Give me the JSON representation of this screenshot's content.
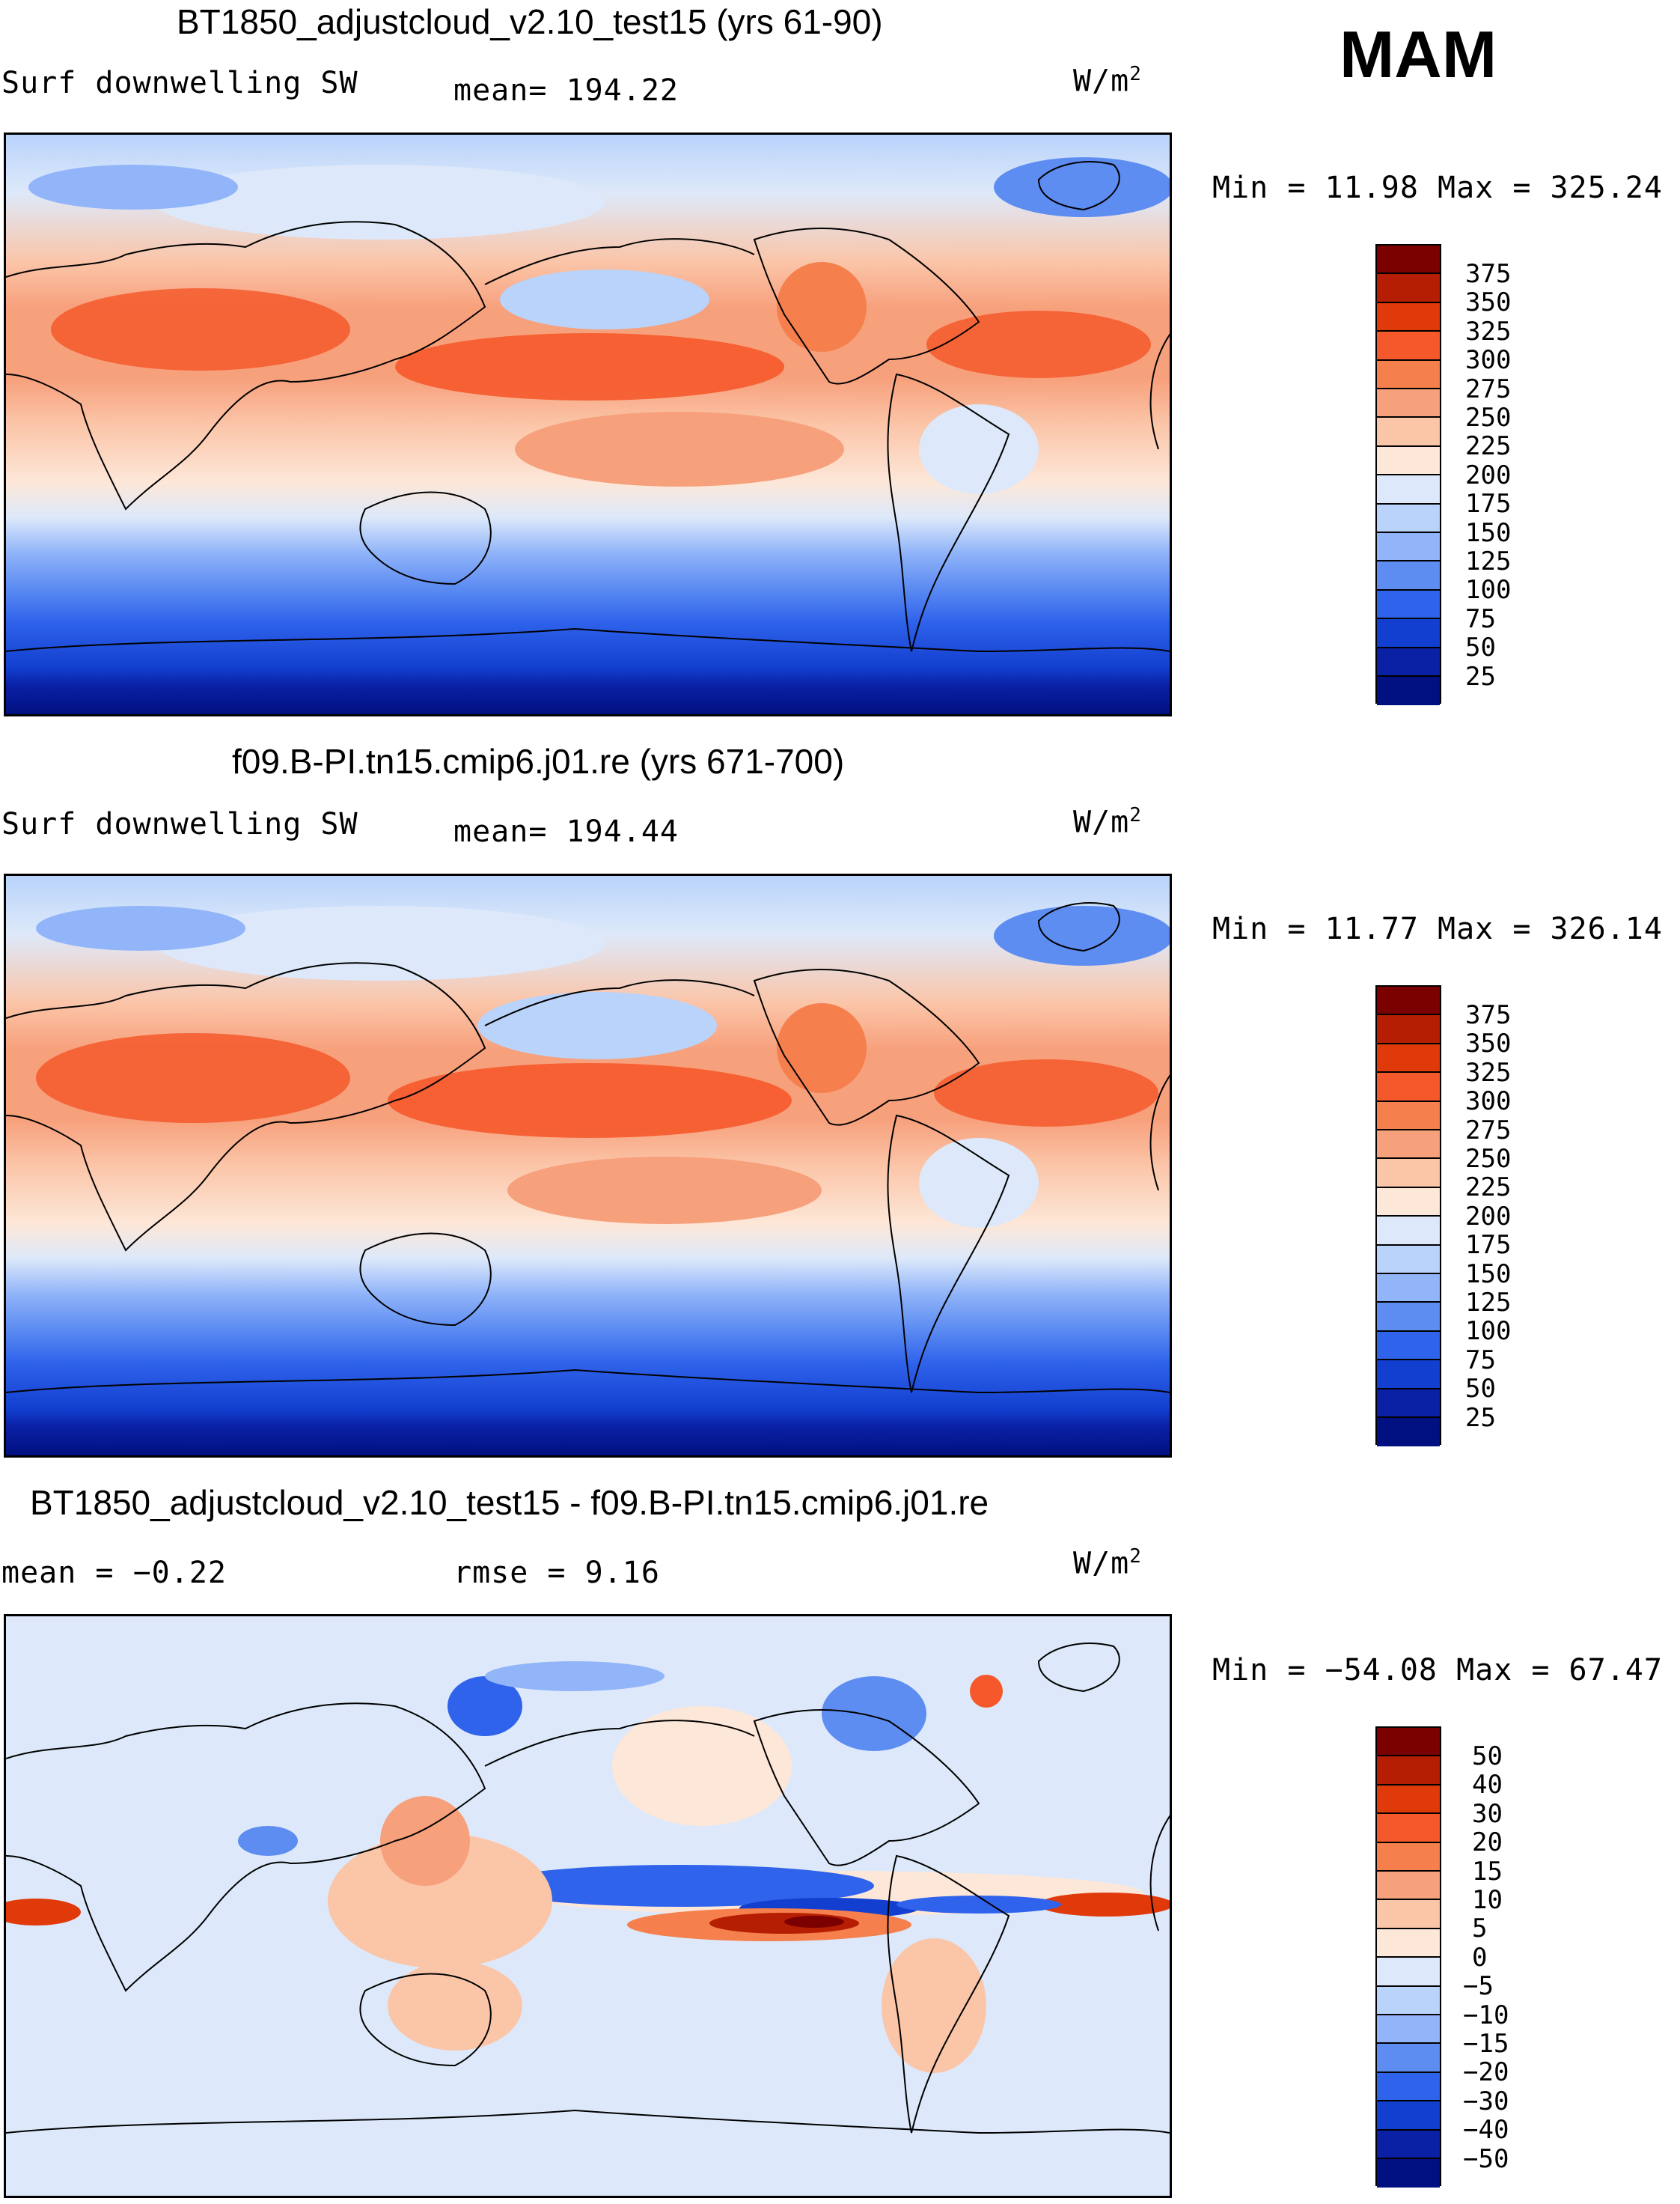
{
  "season": "MAM",
  "panels": [
    {
      "title": "BT1850_adjustcloud_v2.10_test15 (yrs 61-90)",
      "left_label": "Surf downwelling SW",
      "mid_label": "mean= 194.22",
      "unit_base": "W/m",
      "unit_exp": "2",
      "stats": "Min =   11.98 Max = 325.24",
      "colorbar": {
        "labels": [
          "375",
          "350",
          "325",
          "300",
          "275",
          "250",
          "225",
          "200",
          "175",
          "150",
          "125",
          "100",
          "75",
          "50",
          "25"
        ],
        "colors": [
          "#7b0000",
          "#b51e02",
          "#e0390a",
          "#f5592b",
          "#f57f4d",
          "#f7a07c",
          "#fbc5a8",
          "#fde7d8",
          "#dde9fa",
          "#b9d3fb",
          "#92b5f9",
          "#5e8df2",
          "#2f63eb",
          "#123fcf",
          "#0a21a6",
          "#011080"
        ]
      }
    },
    {
      "title": "f09.B-PI.tn15.cmip6.j01.re (yrs 671-700)",
      "left_label": "Surf downwelling SW",
      "mid_label": "mean= 194.44",
      "unit_base": "W/m",
      "unit_exp": "2",
      "stats": "Min =   11.77 Max = 326.14",
      "colorbar": {
        "labels": [
          "375",
          "350",
          "325",
          "300",
          "275",
          "250",
          "225",
          "200",
          "175",
          "150",
          "125",
          "100",
          "75",
          "50",
          "25"
        ],
        "colors": [
          "#7b0000",
          "#b51e02",
          "#e0390a",
          "#f5592b",
          "#f57f4d",
          "#f7a07c",
          "#fbc5a8",
          "#fde7d8",
          "#dde9fa",
          "#b9d3fb",
          "#92b5f9",
          "#5e8df2",
          "#2f63eb",
          "#123fcf",
          "#0a21a6",
          "#011080"
        ]
      }
    },
    {
      "title": "BT1850_adjustcloud_v2.10_test15 - f09.B-PI.tn15.cmip6.j01.re",
      "left_label": "mean =   −0.22",
      "mid_label": "rmse =    9.16",
      "unit_base": "W/m",
      "unit_exp": "2",
      "stats": "Min = −54.08 Max =   67.47",
      "colorbar": {
        "labels": [
          "50",
          "40",
          "30",
          "20",
          "15",
          "10",
          "5",
          "0",
          "−5",
          "−10",
          "−15",
          "−20",
          "−30",
          "−40",
          "−50"
        ],
        "colors": [
          "#7b0000",
          "#b51e02",
          "#e0390a",
          "#f5592b",
          "#f57f4d",
          "#f7a07c",
          "#fbc5a8",
          "#fde7d8",
          "#dde9fa",
          "#b9d3fb",
          "#92b5f9",
          "#5e8df2",
          "#2f63eb",
          "#123fcf",
          "#0a21a6",
          "#011080"
        ]
      }
    }
  ]
}
